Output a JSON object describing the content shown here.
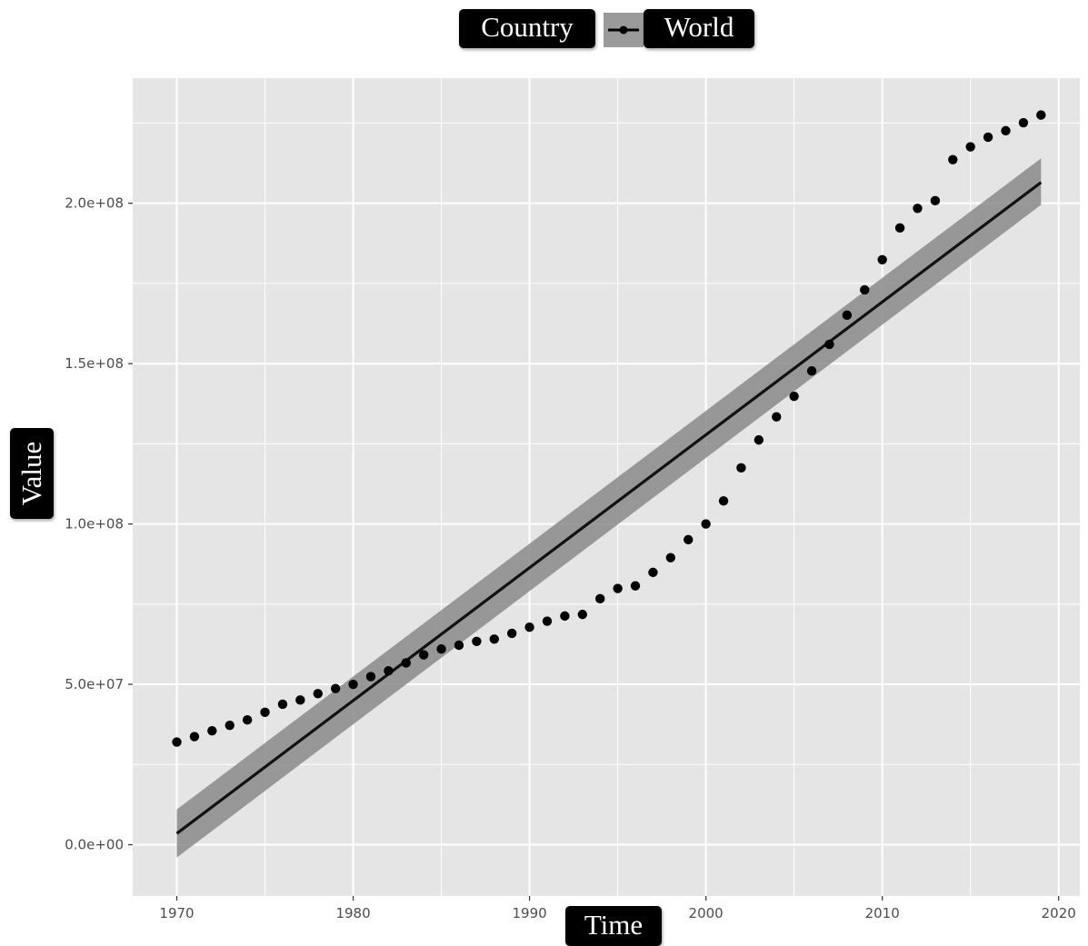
{
  "chart_data": {
    "type": "scatter",
    "xlabel": "Time",
    "ylabel": "Value",
    "legend": {
      "title": "Country",
      "entries": [
        "World"
      ],
      "position": "top"
    },
    "grid": true,
    "xlim": [
      1967.5,
      2021.2
    ],
    "ylim": [
      -16000000,
      239000000
    ],
    "x_ticks": [
      1970,
      1980,
      1990,
      2000,
      2010,
      2020
    ],
    "y_ticks": [
      0,
      50000000,
      100000000,
      150000000,
      200000000
    ],
    "y_tick_labels": [
      "0.0e+00",
      "5.0e+07",
      "1.0e+08",
      "1.5e+08",
      "2.0e+08"
    ],
    "series": [
      {
        "name": "World",
        "x": [
          1970,
          1971,
          1972,
          1973,
          1974,
          1975,
          1976,
          1977,
          1978,
          1979,
          1980,
          1981,
          1982,
          1983,
          1984,
          1985,
          1986,
          1987,
          1988,
          1989,
          1990,
          1991,
          1992,
          1993,
          1994,
          1995,
          1996,
          1997,
          1998,
          1999,
          2000,
          2001,
          2002,
          2003,
          2004,
          2005,
          2006,
          2007,
          2008,
          2009,
          2010,
          2011,
          2012,
          2013,
          2014,
          2015,
          2016,
          2017,
          2018,
          2019
        ],
        "values": [
          32000000,
          33700000,
          35500000,
          37200000,
          38900000,
          41300000,
          43800000,
          45100000,
          47100000,
          48700000,
          50000000,
          52400000,
          54200000,
          56700000,
          59200000,
          61000000,
          62200000,
          63400000,
          64100000,
          65900000,
          67800000,
          69700000,
          71300000,
          71800000,
          76700000,
          79900000,
          80700000,
          84900000,
          89500000,
          95100000,
          100000000,
          107200000,
          117500000,
          126200000,
          133400000,
          139800000,
          147700000,
          156000000,
          165100000,
          173000000,
          182400000,
          192300000,
          198400000,
          200800000,
          213600000,
          217600000,
          220600000,
          222600000,
          225100000,
          227500000
        ]
      }
    ],
    "trend": {
      "type": "linear fit with confidence band",
      "x": [
        1970,
        2019
      ],
      "values": [
        3500000,
        206500000
      ],
      "band_lower": [
        -4000000,
        199500000
      ],
      "band_upper": [
        11000000,
        214000000
      ],
      "line_color": "#111111",
      "band_color": "#8a8a8a"
    },
    "colors": {
      "panel": "#e5e5e5",
      "grid": "#ffffff",
      "points": "#000000"
    }
  }
}
